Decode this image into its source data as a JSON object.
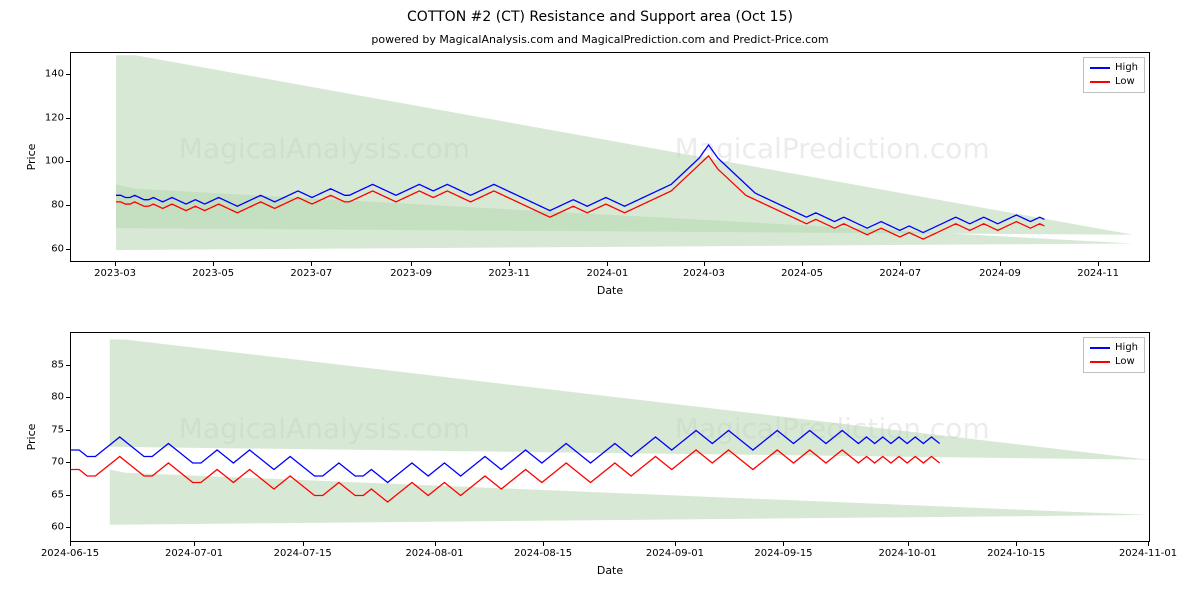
{
  "title": "COTTON #2 (CT) Resistance and Support area (Oct 15)",
  "title_fontsize": 14,
  "subtitle": "powered by MagicalAnalysis.com and MagicalPrediction.com and Predict-Price.com",
  "subtitle_fontsize": 11,
  "background_color": "#ffffff",
  "watermark_color": "rgba(128,128,128,0.15)",
  "watermark_fontsize": 28,
  "watermarks_top": [
    "MagicalAnalysis.com",
    "MagicalPrediction.com"
  ],
  "watermarks_bottom": [
    "MagicalAnalysis.com",
    "MagicalPrediction.com"
  ],
  "series_legend": [
    {
      "label": "High",
      "color": "#0000ff"
    },
    {
      "label": "Low",
      "color": "#ff0000"
    }
  ],
  "fill_color": "#b7d7b0",
  "fill_opacity": 0.55,
  "axis_font_size": 10,
  "label_font_size": 11,
  "line_width": 1.3,
  "chart_top": {
    "ylabel": "Price",
    "xlabel": "Date",
    "ylim": [
      55,
      150
    ],
    "yticks": [
      60,
      80,
      100,
      120,
      140
    ],
    "x_start": 0,
    "x_end": 670,
    "xticks": [
      {
        "x": 28,
        "label": "2023-03"
      },
      {
        "x": 89,
        "label": "2023-05"
      },
      {
        "x": 150,
        "label": "2023-07"
      },
      {
        "x": 212,
        "label": "2023-09"
      },
      {
        "x": 273,
        "label": "2023-11"
      },
      {
        "x": 334,
        "label": "2024-01"
      },
      {
        "x": 394,
        "label": "2024-03"
      },
      {
        "x": 455,
        "label": "2024-05"
      },
      {
        "x": 516,
        "label": "2024-07"
      },
      {
        "x": 578,
        "label": "2024-09"
      },
      {
        "x": 639,
        "label": "2024-11"
      }
    ],
    "resistance_poly_y": [
      149,
      149,
      67,
      70
    ],
    "resistance_poly_x": [
      28,
      40,
      660,
      28
    ],
    "support_poly_y": [
      90,
      88,
      63,
      60
    ],
    "support_poly_x": [
      28,
      40,
      660,
      28
    ],
    "high": [
      85,
      85,
      84,
      84,
      85,
      84,
      83,
      83,
      84,
      83,
      82,
      83,
      84,
      83,
      82,
      81,
      82,
      83,
      82,
      81,
      82,
      83,
      84,
      83,
      82,
      81,
      80,
      81,
      82,
      83,
      84,
      85,
      84,
      83,
      82,
      83,
      84,
      85,
      86,
      87,
      86,
      85,
      84,
      85,
      86,
      87,
      88,
      87,
      86,
      85,
      85,
      86,
      87,
      88,
      89,
      90,
      89,
      88,
      87,
      86,
      85,
      86,
      87,
      88,
      89,
      90,
      89,
      88,
      87,
      88,
      89,
      90,
      89,
      88,
      87,
      86,
      85,
      86,
      87,
      88,
      89,
      90,
      89,
      88,
      87,
      86,
      85,
      84,
      83,
      82,
      81,
      80,
      79,
      78,
      79,
      80,
      81,
      82,
      83,
      82,
      81,
      80,
      81,
      82,
      83,
      84,
      83,
      82,
      81,
      80,
      81,
      82,
      83,
      84,
      85,
      86,
      87,
      88,
      89,
      90,
      92,
      94,
      96,
      98,
      100,
      102,
      105,
      108,
      105,
      102,
      100,
      98,
      96,
      94,
      92,
      90,
      88,
      86,
      85,
      84,
      83,
      82,
      81,
      80,
      79,
      78,
      77,
      76,
      75,
      76,
      77,
      76,
      75,
      74,
      73,
      74,
      75,
      74,
      73,
      72,
      71,
      70,
      71,
      72,
      73,
      72,
      71,
      70,
      69,
      70,
      71,
      70,
      69,
      68,
      69,
      70,
      71,
      72,
      73,
      74,
      75,
      74,
      73,
      72,
      73,
      74,
      75,
      74,
      73,
      72,
      73,
      74,
      75,
      76,
      75,
      74,
      73,
      74,
      75,
      74
    ],
    "low": [
      82,
      82,
      81,
      81,
      82,
      81,
      80,
      80,
      81,
      80,
      79,
      80,
      81,
      80,
      79,
      78,
      79,
      80,
      79,
      78,
      79,
      80,
      81,
      80,
      79,
      78,
      77,
      78,
      79,
      80,
      81,
      82,
      81,
      80,
      79,
      80,
      81,
      82,
      83,
      84,
      83,
      82,
      81,
      82,
      83,
      84,
      85,
      84,
      83,
      82,
      82,
      83,
      84,
      85,
      86,
      87,
      86,
      85,
      84,
      83,
      82,
      83,
      84,
      85,
      86,
      87,
      86,
      85,
      84,
      85,
      86,
      87,
      86,
      85,
      84,
      83,
      82,
      83,
      84,
      85,
      86,
      87,
      86,
      85,
      84,
      83,
      82,
      81,
      80,
      79,
      78,
      77,
      76,
      75,
      76,
      77,
      78,
      79,
      80,
      79,
      78,
      77,
      78,
      79,
      80,
      81,
      80,
      79,
      78,
      77,
      78,
      79,
      80,
      81,
      82,
      83,
      84,
      85,
      86,
      87,
      89,
      91,
      93,
      95,
      97,
      99,
      101,
      103,
      100,
      97,
      95,
      93,
      91,
      89,
      87,
      85,
      84,
      83,
      82,
      81,
      80,
      79,
      78,
      77,
      76,
      75,
      74,
      73,
      72,
      73,
      74,
      73,
      72,
      71,
      70,
      71,
      72,
      71,
      70,
      69,
      68,
      67,
      68,
      69,
      70,
      69,
      68,
      67,
      66,
      67,
      68,
      67,
      66,
      65,
      66,
      67,
      68,
      69,
      70,
      71,
      72,
      71,
      70,
      69,
      70,
      71,
      72,
      71,
      70,
      69,
      70,
      71,
      72,
      73,
      72,
      71,
      70,
      71,
      72,
      71
    ]
  },
  "chart_bottom": {
    "ylabel": "Price",
    "xlabel": "Date",
    "ylim": [
      58,
      90
    ],
    "yticks": [
      60,
      65,
      70,
      75,
      80,
      85
    ],
    "x_start": 0,
    "x_end": 139,
    "xticks": [
      {
        "x": 0,
        "label": "2024-06-15"
      },
      {
        "x": 16,
        "label": "2024-07-01"
      },
      {
        "x": 30,
        "label": "2024-07-15"
      },
      {
        "x": 47,
        "label": "2024-08-01"
      },
      {
        "x": 61,
        "label": "2024-08-15"
      },
      {
        "x": 78,
        "label": "2024-09-01"
      },
      {
        "x": 92,
        "label": "2024-09-15"
      },
      {
        "x": 108,
        "label": "2024-10-01"
      },
      {
        "x": 122,
        "label": "2024-10-15"
      },
      {
        "x": 139,
        "label": "2024-11-01"
      }
    ],
    "resistance_poly_y": [
      89,
      89,
      70.5,
      72.5
    ],
    "resistance_poly_x": [
      5,
      7,
      139,
      5
    ],
    "support_poly_y": [
      69,
      68.5,
      62,
      60.5
    ],
    "support_poly_x": [
      5,
      7,
      139,
      5
    ],
    "high": [
      72,
      72,
      71,
      71,
      72,
      73,
      74,
      73,
      72,
      71,
      71,
      72,
      73,
      72,
      71,
      70,
      70,
      71,
      72,
      71,
      70,
      71,
      72,
      71,
      70,
      69,
      70,
      71,
      70,
      69,
      68,
      68,
      69,
      70,
      69,
      68,
      68,
      69,
      68,
      67,
      68,
      69,
      70,
      69,
      68,
      69,
      70,
      69,
      68,
      69,
      70,
      71,
      70,
      69,
      70,
      71,
      72,
      71,
      70,
      71,
      72,
      73,
      72,
      71,
      70,
      71,
      72,
      73,
      72,
      71,
      72,
      73,
      74,
      73,
      72,
      73,
      74,
      75,
      74,
      73,
      74,
      75,
      74,
      73,
      72,
      73,
      74,
      75,
      74,
      73,
      74,
      75,
      74,
      73,
      74,
      75,
      74,
      73,
      74,
      73,
      74,
      73,
      74,
      73,
      74,
      73,
      74,
      73
    ],
    "low": [
      69,
      69,
      68,
      68,
      69,
      70,
      71,
      70,
      69,
      68,
      68,
      69,
      70,
      69,
      68,
      67,
      67,
      68,
      69,
      68,
      67,
      68,
      69,
      68,
      67,
      66,
      67,
      68,
      67,
      66,
      65,
      65,
      66,
      67,
      66,
      65,
      65,
      66,
      65,
      64,
      65,
      66,
      67,
      66,
      65,
      66,
      67,
      66,
      65,
      66,
      67,
      68,
      67,
      66,
      67,
      68,
      69,
      68,
      67,
      68,
      69,
      70,
      69,
      68,
      67,
      68,
      69,
      70,
      69,
      68,
      69,
      70,
      71,
      70,
      69,
      70,
      71,
      72,
      71,
      70,
      71,
      72,
      71,
      70,
      69,
      70,
      71,
      72,
      71,
      70,
      71,
      72,
      71,
      70,
      71,
      72,
      71,
      70,
      71,
      70,
      71,
      70,
      71,
      70,
      71,
      70,
      71,
      70
    ]
  }
}
